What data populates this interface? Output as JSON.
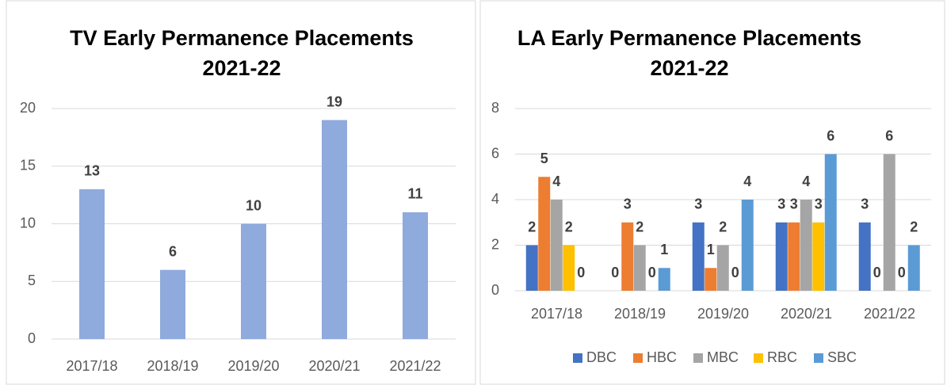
{
  "chart_data": [
    {
      "type": "bar",
      "title": "TV Early Permanence Placements",
      "subtitle": "2021-22",
      "categories": [
        "2017/18",
        "2018/19",
        "2019/20",
        "2020/21",
        "2021/22"
      ],
      "values": [
        13,
        6,
        10,
        19,
        11
      ],
      "color": "#8faadc",
      "ylim": [
        0,
        20
      ],
      "yticks": [
        0,
        5,
        10,
        15,
        20
      ],
      "grid": true
    },
    {
      "type": "grouped_bar",
      "title": "LA Early Permanence Placements",
      "subtitle": "2021-22",
      "categories": [
        "2017/18",
        "2018/19",
        "2019/20",
        "2020/21",
        "2021/22"
      ],
      "series": [
        {
          "name": "DBC",
          "color": "#4472c4",
          "values": [
            2,
            0,
            3,
            3,
            3
          ]
        },
        {
          "name": "HBC",
          "color": "#ed7d31",
          "values": [
            5,
            3,
            1,
            3,
            0
          ]
        },
        {
          "name": "MBC",
          "color": "#a5a5a5",
          "values": [
            4,
            2,
            2,
            4,
            6
          ]
        },
        {
          "name": "RBC",
          "color": "#ffc000",
          "values": [
            2,
            0,
            0,
            3,
            0
          ]
        },
        {
          "name": "SBC",
          "color": "#5b9bd5",
          "values": [
            0,
            1,
            4,
            6,
            2
          ]
        }
      ],
      "ylim": [
        0,
        8
      ],
      "yticks": [
        0,
        2,
        4,
        6,
        8
      ],
      "grid": true,
      "legend": "bottom"
    }
  ]
}
